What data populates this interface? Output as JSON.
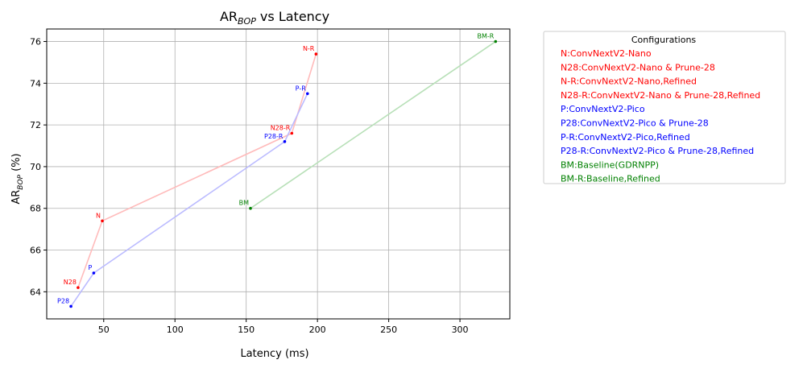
{
  "chart_data": {
    "type": "scatter",
    "title": "AR",
    "title_sub": "BOP",
    "title_rest": " vs Latency",
    "xlabel": "Latency (ms)",
    "ylabel": "AR",
    "ylabel_sub": "BOP",
    "ylabel_rest": " (%)",
    "xlim": [
      10,
      335
    ],
    "ylim": [
      62.7,
      76.6
    ],
    "xticks": [
      50,
      100,
      150,
      200,
      250,
      300
    ],
    "yticks": [
      64,
      66,
      68,
      70,
      72,
      74,
      76
    ],
    "grid": true,
    "legend_title": "Configurations",
    "legend_position": "outside-right",
    "legend_entries": [
      {
        "text": "N:ConvNextV2-Nano",
        "color": "#ff0000"
      },
      {
        "text": "N28:ConvNextV2-Nano & Prune-28",
        "color": "#ff0000"
      },
      {
        "text": "N-R:ConvNextV2-Nano,Refined",
        "color": "#ff0000"
      },
      {
        "text": "N28-R:ConvNextV2-Nano & Prune-28,Refined",
        "color": "#ff0000"
      },
      {
        "text": "P:ConvNextV2-Pico",
        "color": "#0000ff"
      },
      {
        "text": "P28:ConvNextV2-Pico & Prune-28",
        "color": "#0000ff"
      },
      {
        "text": "P-R:ConvNextV2-Pico,Refined",
        "color": "#0000ff"
      },
      {
        "text": "P28-R:ConvNextV2-Pico & Prune-28,Refined",
        "color": "#0000ff"
      },
      {
        "text": "BM:Baseline(GDRNPP)",
        "color": "#008000"
      },
      {
        "text": "BM-R:Baseline,Refined",
        "color": "#008000"
      }
    ],
    "points": [
      {
        "label": "N",
        "x": 49,
        "y": 67.4,
        "color": "#ff0000"
      },
      {
        "label": "N28",
        "x": 32,
        "y": 64.2,
        "color": "#ff0000"
      },
      {
        "label": "N-R",
        "x": 199,
        "y": 75.4,
        "color": "#ff0000"
      },
      {
        "label": "N28-R",
        "x": 182,
        "y": 71.6,
        "color": "#ff0000"
      },
      {
        "label": "P",
        "x": 43,
        "y": 64.9,
        "color": "#0000ff"
      },
      {
        "label": "P28",
        "x": 27,
        "y": 63.3,
        "color": "#0000ff"
      },
      {
        "label": "P-R",
        "x": 193,
        "y": 73.5,
        "color": "#0000ff"
      },
      {
        "label": "P28-R",
        "x": 177,
        "y": 71.2,
        "color": "#0000ff"
      },
      {
        "label": "BM",
        "x": 153,
        "y": 68.0,
        "color": "#008000"
      },
      {
        "label": "BM-R",
        "x": 325,
        "y": 76.0,
        "color": "#008000"
      }
    ],
    "connections": [
      {
        "path": [
          "N28",
          "N",
          "N28-R",
          "N-R"
        ],
        "color": "#ffbbbb"
      },
      {
        "path": [
          "P28",
          "P",
          "P28-R",
          "P-R"
        ],
        "color": "#bbbbff"
      },
      {
        "path": [
          "BM",
          "BM-R"
        ],
        "color": "#b8e0b8"
      }
    ]
  }
}
